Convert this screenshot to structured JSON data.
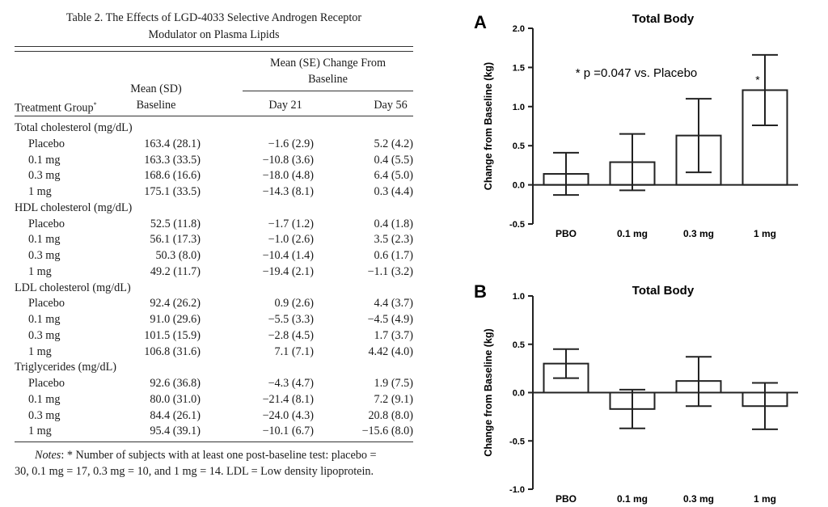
{
  "table": {
    "caption_line1": "Table 2.  The Effects of LGD-4033 Selective Androgen Receptor",
    "caption_line2": "Modulator on Plasma Lipids",
    "header": {
      "group": "Mean (SE) Change From",
      "group_line2": "Baseline",
      "treatment_group": "Treatment Group",
      "treatment_sup": "*",
      "baseline_line1": "Mean (SD)",
      "baseline_line2": "Baseline",
      "day21": "Day 21",
      "day56": "Day 56"
    },
    "sections": [
      {
        "title": "Total cholesterol (mg/dL)",
        "rows": [
          [
            "Placebo",
            "163.4 (28.1)",
            "−1.6 (2.9)",
            "5.2 (4.2)"
          ],
          [
            "0.1 mg",
            "163.3 (33.5)",
            "−10.8 (3.6)",
            "0.4 (5.5)"
          ],
          [
            "0.3 mg",
            "168.6 (16.6)",
            "−18.0 (4.8)",
            "6.4 (5.0)"
          ],
          [
            "1 mg",
            "175.1 (33.5)",
            "−14.3 (8.1)",
            "0.3 (4.4)"
          ]
        ]
      },
      {
        "title": "HDL cholesterol (mg/dL)",
        "rows": [
          [
            "Placebo",
            "52.5 (11.8)",
            "−1.7 (1.2)",
            "0.4 (1.8)"
          ],
          [
            "0.1 mg",
            "56.1 (17.3)",
            "−1.0 (2.6)",
            "3.5 (2.3)"
          ],
          [
            "0.3 mg",
            "50.3 (8.0)",
            "−10.4 (1.4)",
            "0.6 (1.7)"
          ],
          [
            "1 mg",
            "49.2 (11.7)",
            "−19.4 (2.1)",
            "−1.1 (3.2)"
          ]
        ]
      },
      {
        "title": "LDL cholesterol (mg/dL)",
        "rows": [
          [
            "Placebo",
            "92.4 (26.2)",
            "0.9 (2.6)",
            "4.4 (3.7)"
          ],
          [
            "0.1 mg",
            "91.0 (29.6)",
            "−5.5 (3.3)",
            "−4.5 (4.9)"
          ],
          [
            "0.3 mg",
            "101.5 (15.9)",
            "−2.8 (4.5)",
            "1.7 (3.7)"
          ],
          [
            "1 mg",
            "106.8 (31.6)",
            "7.1 (7.1)",
            "4.42 (4.0)"
          ]
        ]
      },
      {
        "title": "Triglycerides (mg/dL)",
        "rows": [
          [
            "Placebo",
            "92.6 (36.8)",
            "−4.3 (4.7)",
            "1.9 (7.5)"
          ],
          [
            "0.1 mg",
            "80.0 (31.0)",
            "−21.4 (8.1)",
            "7.2 (9.1)"
          ],
          [
            "0.3 mg",
            "84.4 (26.1)",
            "−24.0 (4.3)",
            "20.8 (8.0)"
          ],
          [
            "1 mg",
            "95.4 (39.1)",
            "−10.1 (6.7)",
            "−15.6 (8.0)"
          ]
        ]
      }
    ],
    "notes_label": "Notes",
    "notes_line1": ": * Number of subjects with at least one post-baseline test: placebo =",
    "notes_line2": "30, 0.1 mg = 17, 0.3 mg = 10, and 1 mg = 14. LDL = Low density lipoprotein."
  },
  "chart_data": [
    {
      "type": "bar",
      "panel": "A",
      "title": "Total Body",
      "ylabel": "Change from Baseline (kg)",
      "xlabel": "",
      "categories": [
        "PBO",
        "0.1 mg",
        "0.3 mg",
        "1 mg"
      ],
      "values": [
        0.14,
        0.29,
        0.63,
        1.21
      ],
      "error_low": [
        -0.13,
        -0.07,
        0.16,
        0.76
      ],
      "error_high": [
        0.41,
        0.65,
        1.1,
        1.66
      ],
      "ylim": [
        -0.5,
        2.0
      ],
      "yticks": [
        "-0.5",
        "0.0",
        "0.5",
        "1.0",
        "1.5",
        "2.0"
      ],
      "annotation": "* p =0.047 vs. Placebo",
      "significance_marks": [
        "",
        "",
        "",
        "*"
      ],
      "grid": false
    },
    {
      "type": "bar",
      "panel": "B",
      "title": "Total Body",
      "ylabel": "Change from Baseline (kg)",
      "xlabel": "",
      "categories": [
        "PBO",
        "0.1 mg",
        "0.3 mg",
        "1 mg"
      ],
      "values": [
        0.3,
        -0.17,
        0.12,
        -0.14
      ],
      "error_low": [
        0.15,
        -0.37,
        -0.14,
        -0.38
      ],
      "error_high": [
        0.45,
        0.03,
        0.37,
        0.1
      ],
      "ylim": [
        -1.0,
        1.0
      ],
      "yticks": [
        "-1.0",
        "-0.5",
        "0.0",
        "0.5",
        "1.0"
      ],
      "significance_marks": [
        "",
        "",
        "",
        ""
      ],
      "grid": false
    }
  ]
}
